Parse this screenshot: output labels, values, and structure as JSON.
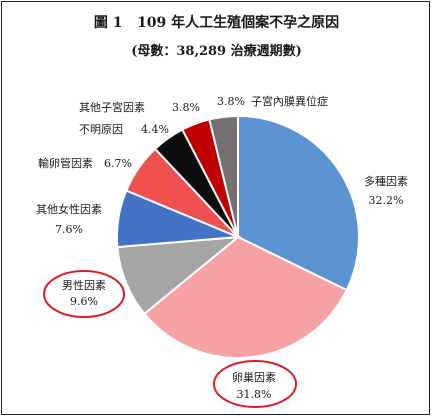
{
  "chart_data": {
    "type": "pie",
    "title": "圖 1   109 年人工生殖個案不孕之原因",
    "subtitle": "(母數：38,289 治療週期數)",
    "slices": [
      {
        "name": "多種因素",
        "value": 32.2,
        "value_label": "32.2%",
        "color": "#5B93D3"
      },
      {
        "name": "卵巢因素",
        "value": 31.8,
        "value_label": "31.8%",
        "color": "#F7A2A4"
      },
      {
        "name": "男性因素",
        "value": 9.6,
        "value_label": "9.6%",
        "color": "#A5A5A5"
      },
      {
        "name": "其他女性因素",
        "value": 7.6,
        "value_label": "7.6%",
        "color": "#4472C4"
      },
      {
        "name": "輸卵管因素",
        "value": 6.7,
        "value_label": "6.7%",
        "color": "#EE5050"
      },
      {
        "name": "不明原因",
        "value": 4.4,
        "value_label": "4.4%",
        "color": "#0D0D0D"
      },
      {
        "name": "其他子宮因素",
        "value": 3.8,
        "value_label": "3.8%",
        "color": "#C00000"
      },
      {
        "name": "子宮內膜異位症",
        "value": 3.8,
        "value_label": "3.8%",
        "color": "#767171"
      }
    ],
    "highlight_color": "#D61F26",
    "highlighted": [
      "卵巢因素",
      "男性因素"
    ],
    "legend": "none"
  }
}
